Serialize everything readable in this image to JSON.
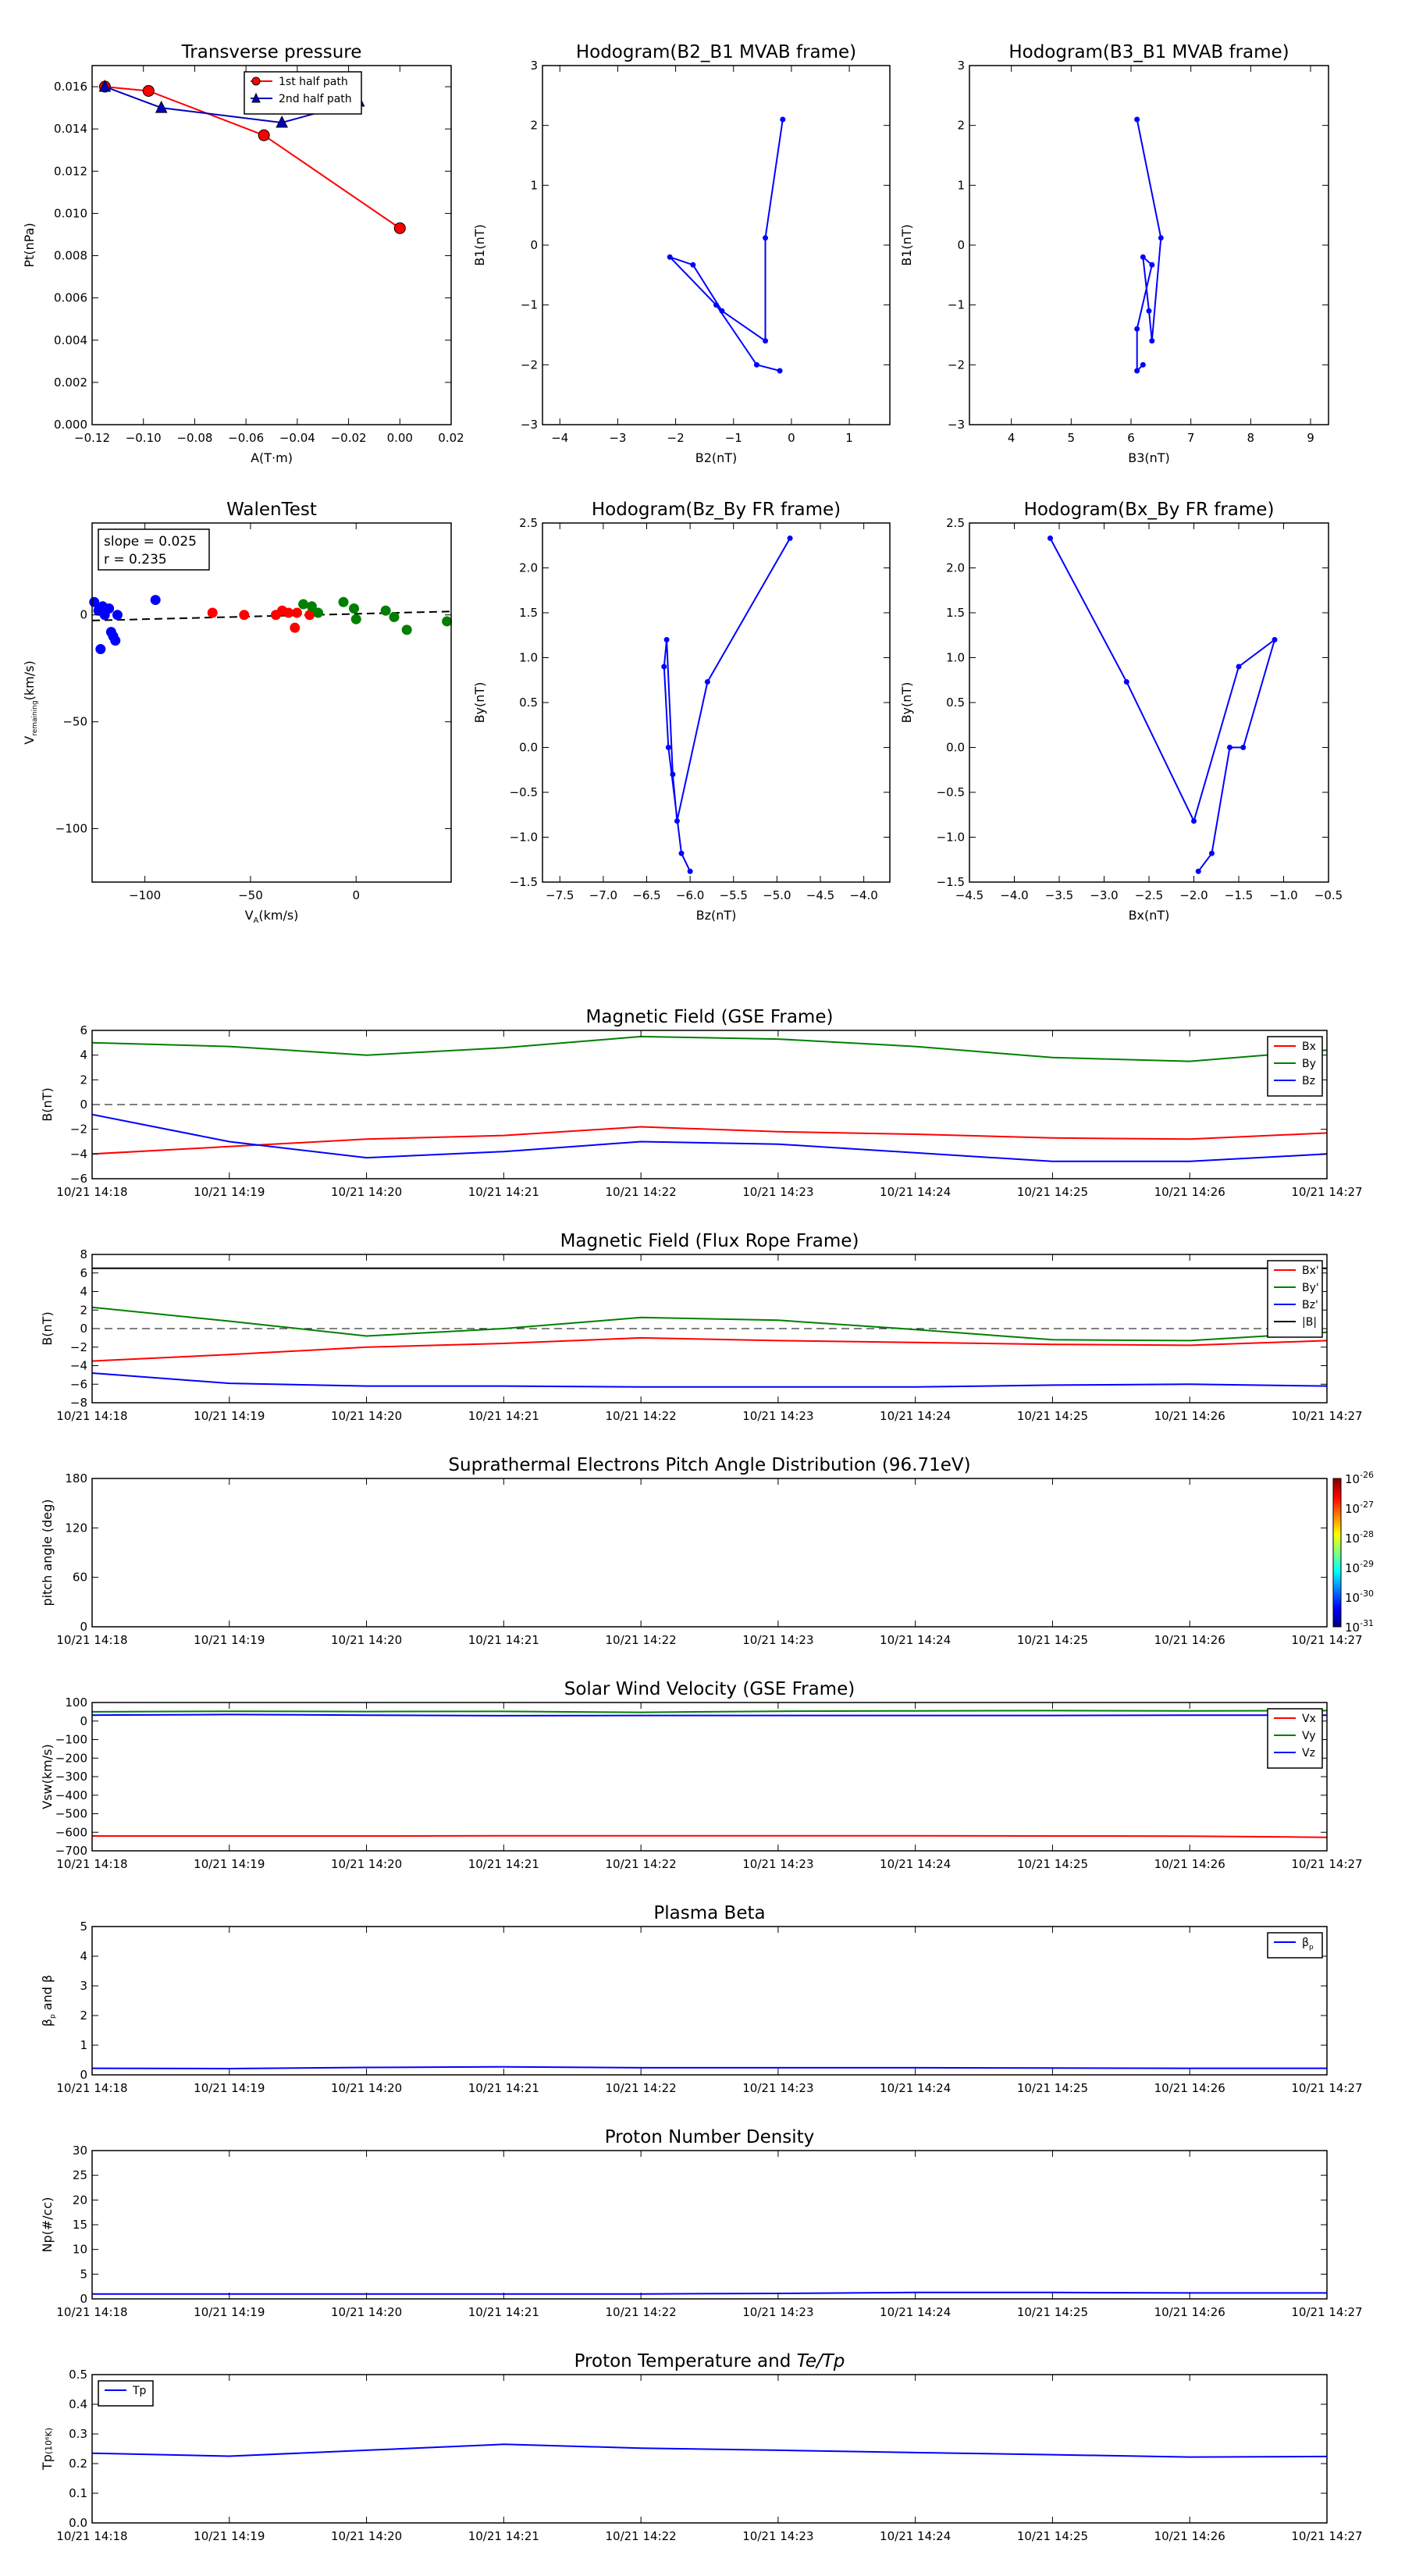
{
  "chart_data": [
    {
      "id": "tp",
      "type": "line",
      "title": "Transverse pressure",
      "xlabel": "A(T·m)",
      "ylabel": "Pt(nPa)",
      "xlim": [
        -0.12,
        0.02
      ],
      "ylim": [
        0,
        0.017
      ],
      "xticks": [
        -0.12,
        -0.1,
        -0.08,
        -0.06,
        -0.04,
        -0.02,
        0.0,
        0.02
      ],
      "xticklabels": [
        "−0.12",
        "−0.10",
        "−0.08",
        "−0.06",
        "−0.04",
        "−0.02",
        "0.00",
        "0.02"
      ],
      "yticks": [
        0,
        0.002,
        0.004,
        0.006,
        0.008,
        0.01,
        0.012,
        0.014,
        0.016
      ],
      "yticklabels": [
        "0.000",
        "0.002",
        "0.004",
        "0.006",
        "0.008",
        "0.010",
        "0.012",
        "0.014",
        "0.016"
      ],
      "legend": "top-center",
      "series": [
        {
          "name": "1st half path",
          "color": "#ff0000",
          "marker": "circle",
          "x": [
            -0.115,
            -0.098,
            -0.053,
            0.0
          ],
          "y": [
            0.016,
            0.0158,
            0.0137,
            0.0093
          ]
        },
        {
          "name": "2nd half path",
          "color": "#0000bf",
          "marker": "triangle",
          "x": [
            -0.115,
            -0.093,
            -0.046,
            -0.016
          ],
          "y": [
            0.016,
            0.015,
            0.0143,
            0.0153
          ]
        }
      ]
    },
    {
      "id": "h1",
      "type": "line",
      "title": "Hodogram(B2_B1 MVAB frame)",
      "xlabel": "B2(nT)",
      "ylabel": "B1(nT)",
      "xlim": [
        -4.3,
        1.7
      ],
      "ylim": [
        -3,
        3
      ],
      "xticks": [
        -4,
        -3,
        -2,
        -1,
        0,
        1
      ],
      "xticklabels": [
        "−4",
        "−3",
        "−2",
        "−1",
        "0",
        "1"
      ],
      "yticks": [
        -3,
        -2,
        -1,
        0,
        1,
        2,
        3
      ],
      "yticklabels": [
        "−3",
        "−2",
        "−1",
        "0",
        "1",
        "2",
        "3"
      ],
      "series": [
        {
          "color": "#0000ff",
          "marker": "dot",
          "x": [
            -0.15,
            -0.45,
            -0.45,
            -1.2,
            -1.7,
            -2.1,
            -1.3,
            -0.6,
            -0.2
          ],
          "y": [
            2.1,
            0.12,
            -1.6,
            -1.1,
            -0.33,
            -0.2,
            -1.0,
            -2.0,
            -2.1
          ]
        }
      ]
    },
    {
      "id": "h2",
      "type": "line",
      "title": "Hodogram(B3_B1 MVAB frame)",
      "xlabel": "B3(nT)",
      "ylabel": "B1(nT)",
      "xlim": [
        3.3,
        9.3
      ],
      "ylim": [
        -3,
        3
      ],
      "xticks": [
        4,
        5,
        6,
        7,
        8,
        9
      ],
      "xticklabels": [
        "4",
        "5",
        "6",
        "7",
        "8",
        "9"
      ],
      "yticks": [
        -3,
        -2,
        -1,
        0,
        1,
        2,
        3
      ],
      "yticklabels": [
        "−3",
        "−2",
        "−1",
        "0",
        "1",
        "2",
        "3"
      ],
      "series": [
        {
          "color": "#0000ff",
          "marker": "dot",
          "x": [
            6.1,
            6.5,
            6.35,
            6.3,
            6.2,
            6.35,
            6.1,
            6.1,
            6.2
          ],
          "y": [
            2.1,
            0.12,
            -1.6,
            -1.1,
            -0.2,
            -0.33,
            -1.4,
            -2.1,
            -2.0
          ]
        }
      ]
    },
    {
      "id": "walen",
      "type": "scatter",
      "title": "WalenTest",
      "xlabel": "V",
      "xlabel_sub": "A",
      "xlabel_unit": "(km/s)",
      "ylabel": "V",
      "ylabel_sub": "remaining",
      "ylabel_unit": "(km/s)",
      "xlim": [
        -125,
        45
      ],
      "ylim": [
        -125,
        43
      ],
      "xticks": [
        -100,
        -50,
        0
      ],
      "xticklabels": [
        "−100",
        "−50",
        "0"
      ],
      "yticks": [
        -100,
        -50,
        0
      ],
      "yticklabels": [
        "−100",
        "−50",
        "0"
      ],
      "annotation": [
        "slope = 0.025",
        "r = 0.235"
      ],
      "fit": {
        "slope": 0.025,
        "intercept": 0.5,
        "color": "#000000",
        "style": "dashed"
      },
      "series": [
        {
          "color": "#0000ff",
          "x": [
            -124,
            -122,
            -121,
            -120,
            -119,
            -117,
            -116,
            -115,
            -114,
            -113,
            -95
          ],
          "y": [
            6,
            2,
            -16,
            4,
            0,
            3,
            -8,
            -10,
            -12,
            0,
            7
          ]
        },
        {
          "color": "#ff0000",
          "x": [
            -68,
            -53,
            -38,
            -35,
            -32,
            -29,
            -28,
            -22
          ],
          "y": [
            1,
            0,
            0,
            2,
            1,
            -6,
            1,
            0
          ]
        },
        {
          "color": "#008000",
          "x": [
            -25,
            -21,
            -18,
            -6,
            -1,
            0,
            14,
            18,
            24,
            43
          ],
          "y": [
            5,
            4,
            1,
            6,
            3,
            -2,
            2,
            -1,
            -7,
            -3
          ]
        }
      ]
    },
    {
      "id": "h3",
      "type": "line",
      "title": "Hodogram(Bz_By FR frame)",
      "xlabel": "Bz(nT)",
      "ylabel": "By(nT)",
      "xlim": [
        -7.7,
        -3.7
      ],
      "ylim": [
        -1.5,
        2.5
      ],
      "xticks": [
        -7.5,
        -7.0,
        -6.5,
        -6.0,
        -5.5,
        -5.0,
        -4.5,
        -4.0
      ],
      "xticklabels": [
        "−7.5",
        "−7.0",
        "−6.5",
        "−6.0",
        "−5.5",
        "−5.0",
        "−4.5",
        "−4.0"
      ],
      "yticks": [
        -1.5,
        -1.0,
        -0.5,
        0.0,
        0.5,
        1.0,
        1.5,
        2.0,
        2.5
      ],
      "yticklabels": [
        "−1.5",
        "−1.0",
        "−0.5",
        "0.0",
        "0.5",
        "1.0",
        "1.5",
        "2.0",
        "2.5"
      ],
      "series": [
        {
          "color": "#0000ff",
          "marker": "dot",
          "x": [
            -4.85,
            -5.8,
            -6.15,
            -6.2,
            -6.27,
            -6.3,
            -6.25,
            -6.1,
            -6.0
          ],
          "y": [
            2.33,
            0.73,
            -0.82,
            -0.3,
            1.2,
            0.9,
            0.0,
            -1.18,
            -1.38
          ]
        }
      ]
    },
    {
      "id": "h4",
      "type": "line",
      "title": "Hodogram(Bx_By FR frame)",
      "xlabel": "Bx(nT)",
      "ylabel": "By(nT)",
      "xlim": [
        -4.5,
        -0.5
      ],
      "ylim": [
        -1.5,
        2.5
      ],
      "xticks": [
        -4.5,
        -4.0,
        -3.5,
        -3.0,
        -2.5,
        -2.0,
        -1.5,
        -1.0,
        -0.5
      ],
      "xticklabels": [
        "−4.5",
        "−4.0",
        "−3.5",
        "−3.0",
        "−2.5",
        "−2.0",
        "−1.5",
        "−1.0",
        "−0.5"
      ],
      "yticks": [
        -1.5,
        -1.0,
        -0.5,
        0.0,
        0.5,
        1.0,
        1.5,
        2.0,
        2.5
      ],
      "yticklabels": [
        "−1.5",
        "−1.0",
        "−0.5",
        "0.0",
        "0.5",
        "1.0",
        "1.5",
        "2.0",
        "2.5"
      ],
      "series": [
        {
          "color": "#0000ff",
          "marker": "dot",
          "x": [
            -3.6,
            -2.75,
            -2.0,
            -1.5,
            -1.1,
            -1.45,
            -1.6,
            -1.8,
            -1.95
          ],
          "y": [
            2.33,
            0.73,
            -0.82,
            0.9,
            1.2,
            0.0,
            0.0,
            -1.18,
            -1.38
          ]
        }
      ]
    },
    {
      "id": "mag_gse",
      "type": "line",
      "title": "Magnetic Field (GSE Frame)",
      "ylabel": "B(nT)",
      "x": [
        "10/21 14:18",
        "10/21 14:19",
        "10/21 14:20",
        "10/21 14:21",
        "10/21 14:22",
        "10/21 14:23",
        "10/21 14:24",
        "10/21 14:25",
        "10/21 14:26",
        "10/21 14:27"
      ],
      "ylim": [
        -6,
        6
      ],
      "yticks": [
        -6,
        -4,
        -2,
        0,
        2,
        4,
        6
      ],
      "yticklabels": [
        "−6",
        "−4",
        "−2",
        "0",
        "2",
        "4",
        "6"
      ],
      "zero_line": true,
      "legend": "top-right",
      "series": [
        {
          "name": "Bx",
          "color": "#ff0000",
          "values": [
            -4.0,
            -3.4,
            -2.8,
            -2.5,
            -1.8,
            -2.2,
            -2.4,
            -2.7,
            -2.8,
            -2.3
          ]
        },
        {
          "name": "By",
          "color": "#008000",
          "values": [
            5.0,
            4.7,
            4.0,
            4.6,
            5.5,
            5.3,
            4.7,
            3.8,
            3.5,
            4.4
          ]
        },
        {
          "name": "Bz",
          "color": "#0000ff",
          "values": [
            -0.8,
            -3.0,
            -4.3,
            -3.8,
            -3.0,
            -3.2,
            -3.9,
            -4.6,
            -4.6,
            -4.0
          ]
        }
      ]
    },
    {
      "id": "mag_fr",
      "type": "line",
      "title": "Magnetic Field (Flux Rope Frame)",
      "ylabel": "B(nT)",
      "x": [
        "10/21 14:18",
        "10/21 14:19",
        "10/21 14:20",
        "10/21 14:21",
        "10/21 14:22",
        "10/21 14:23",
        "10/21 14:24",
        "10/21 14:25",
        "10/21 14:26",
        "10/21 14:27"
      ],
      "ylim": [
        -8,
        8
      ],
      "yticks": [
        -8,
        -6,
        -4,
        -2,
        0,
        2,
        4,
        6,
        8
      ],
      "yticklabels": [
        "−8",
        "−6",
        "−4",
        "−2",
        "0",
        "2",
        "4",
        "6",
        "8"
      ],
      "zero_line": true,
      "legend": "top-right",
      "series": [
        {
          "name": "Bx'",
          "color": "#ff0000",
          "values": [
            -3.5,
            -2.8,
            -2.0,
            -1.6,
            -1.0,
            -1.3,
            -1.5,
            -1.7,
            -1.8,
            -1.3
          ]
        },
        {
          "name": "By'",
          "color": "#008000",
          "values": [
            2.3,
            0.8,
            -0.8,
            0.0,
            1.2,
            0.9,
            -0.1,
            -1.2,
            -1.3,
            -0.4
          ]
        },
        {
          "name": "Bz'",
          "color": "#0000ff",
          "values": [
            -4.8,
            -5.9,
            -6.2,
            -6.2,
            -6.3,
            -6.3,
            -6.3,
            -6.1,
            -6.0,
            -6.2
          ]
        },
        {
          "name": "|B|",
          "color": "#000000",
          "values": [
            6.5,
            6.5,
            6.5,
            6.5,
            6.5,
            6.5,
            6.5,
            6.5,
            6.5,
            6.5
          ]
        }
      ]
    },
    {
      "id": "pad",
      "type": "heatmap",
      "title": "Suprathermal Electrons Pitch Angle Distribution (96.71eV)",
      "ylabel": "pitch angle (deg)",
      "x": [
        "10/21 14:18",
        "10/21 14:19",
        "10/21 14:20",
        "10/21 14:21",
        "10/21 14:22",
        "10/21 14:23",
        "10/21 14:24",
        "10/21 14:25",
        "10/21 14:26",
        "10/21 14:27"
      ],
      "ylim": [
        0,
        180
      ],
      "yticks": [
        0,
        60,
        120,
        180
      ],
      "yticklabels": [
        "0",
        "60",
        "120",
        "180"
      ],
      "colorbar_ticks": [
        "-26",
        "-27",
        "-28",
        "-29",
        "-30",
        "-31"
      ],
      "colorbar_base": "10"
    },
    {
      "id": "vsw",
      "type": "line",
      "title": "Solar Wind Velocity (GSE Frame)",
      "ylabel": "Vsw(km/s)",
      "x": [
        "10/21 14:18",
        "10/21 14:19",
        "10/21 14:20",
        "10/21 14:21",
        "10/21 14:22",
        "10/21 14:23",
        "10/21 14:24",
        "10/21 14:25",
        "10/21 14:26",
        "10/21 14:27"
      ],
      "ylim": [
        -700,
        100
      ],
      "yticks": [
        -700,
        -600,
        -500,
        -400,
        -300,
        -200,
        -100,
        0,
        100
      ],
      "yticklabels": [
        "−700",
        "−600",
        "−500",
        "−400",
        "−300",
        "−200",
        "−100",
        "0",
        "100"
      ],
      "legend": "top-right",
      "series": [
        {
          "name": "Vx",
          "color": "#ff0000",
          "values": [
            -620,
            -620,
            -620,
            -619,
            -619,
            -619,
            -619,
            -620,
            -621,
            -627
          ]
        },
        {
          "name": "Vy",
          "color": "#008000",
          "values": [
            50,
            53,
            51,
            52,
            47,
            53,
            55,
            56,
            55,
            56
          ]
        },
        {
          "name": "Vz",
          "color": "#0000ff",
          "values": [
            32,
            35,
            32,
            29,
            30,
            30,
            30,
            30,
            32,
            32
          ]
        }
      ]
    },
    {
      "id": "beta",
      "type": "line",
      "title": "Plasma Beta",
      "ylabel": "β",
      "ylabel_sub": "p",
      "ylabel_rest": " and β",
      "x": [
        "10/21 14:18",
        "10/21 14:19",
        "10/21 14:20",
        "10/21 14:21",
        "10/21 14:22",
        "10/21 14:23",
        "10/21 14:24",
        "10/21 14:25",
        "10/21 14:26",
        "10/21 14:27"
      ],
      "ylim": [
        0,
        5
      ],
      "yticks": [
        0,
        1,
        2,
        3,
        4,
        5
      ],
      "yticklabels": [
        "0",
        "1",
        "2",
        "3",
        "4",
        "5"
      ],
      "legend": "top-right",
      "series": [
        {
          "name": "β",
          "name_sub": "p",
          "color": "#0000ff",
          "values": [
            0.22,
            0.21,
            0.25,
            0.27,
            0.24,
            0.24,
            0.24,
            0.23,
            0.22,
            0.22
          ]
        }
      ]
    },
    {
      "id": "np",
      "type": "line",
      "title": "Proton Number Density",
      "ylabel": "Np(#/cc)",
      "x": [
        "10/21 14:18",
        "10/21 14:19",
        "10/21 14:20",
        "10/21 14:21",
        "10/21 14:22",
        "10/21 14:23",
        "10/21 14:24",
        "10/21 14:25",
        "10/21 14:26",
        "10/21 14:27"
      ],
      "ylim": [
        0,
        30
      ],
      "yticks": [
        0,
        5,
        10,
        15,
        20,
        25,
        30
      ],
      "yticklabels": [
        "0",
        "5",
        "10",
        "15",
        "20",
        "25",
        "30"
      ],
      "series": [
        {
          "color": "#0000ff",
          "values": [
            1.0,
            1.0,
            1.0,
            1.0,
            1.0,
            1.1,
            1.3,
            1.3,
            1.2,
            1.2
          ]
        }
      ]
    },
    {
      "id": "tp_temp",
      "type": "line",
      "title": "Proton Temperature and ",
      "title_math": "Te/Tp",
      "ylabel": "Tp",
      "ylabel_unit": "(10⁶K)",
      "x": [
        "10/21 14:18",
        "10/21 14:19",
        "10/21 14:20",
        "10/21 14:21",
        "10/21 14:22",
        "10/21 14:23",
        "10/21 14:24",
        "10/21 14:25",
        "10/21 14:26",
        "10/21 14:27"
      ],
      "ylim": [
        0,
        0.5
      ],
      "yticks": [
        0.0,
        0.1,
        0.2,
        0.3,
        0.4,
        0.5
      ],
      "yticklabels": [
        "0.0",
        "0.1",
        "0.2",
        "0.3",
        "0.4",
        "0.5"
      ],
      "legend": "top-left",
      "series": [
        {
          "name": "Tp",
          "color": "#0000ff",
          "values": [
            0.235,
            0.225,
            0.245,
            0.265,
            0.252,
            0.245,
            0.237,
            0.23,
            0.222,
            0.224
          ]
        }
      ]
    }
  ]
}
